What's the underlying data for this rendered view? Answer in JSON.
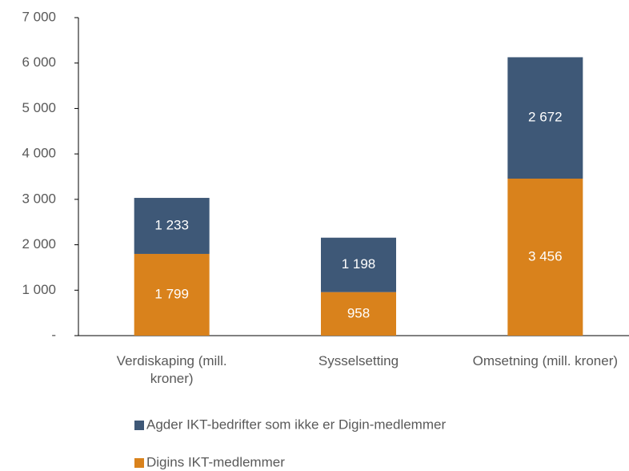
{
  "chart_data": {
    "type": "stacked_bar",
    "categories": [
      "Verdiskaping (mill. kroner)",
      "Sysselsetting",
      "Omsetning (mill. kroner)"
    ],
    "series": [
      {
        "name": "Digins IKT-medlemmer",
        "color": "#d9821c",
        "values": [
          1799,
          958,
          3456
        ],
        "value_labels": [
          "1 799",
          "958",
          "3 456"
        ]
      },
      {
        "name": "Agder IKT-bedrifter som ikke er Digin-medlemmer",
        "color": "#3e5877",
        "values": [
          1233,
          1198,
          2672
        ],
        "value_labels": [
          "1 233",
          "1 198",
          "2 672"
        ]
      }
    ],
    "ylim": [
      0,
      7000
    ],
    "yticks": [
      {
        "value": 0,
        "label": "-"
      },
      {
        "value": 1000,
        "label": "1 000"
      },
      {
        "value": 2000,
        "label": "2 000"
      },
      {
        "value": 3000,
        "label": "3 000"
      },
      {
        "value": 4000,
        "label": "4 000"
      },
      {
        "value": 5000,
        "label": "5 000"
      },
      {
        "value": 6000,
        "label": "6 000"
      },
      {
        "value": 7000,
        "label": "7 000"
      }
    ],
    "grid": false,
    "legend": "bottom"
  }
}
